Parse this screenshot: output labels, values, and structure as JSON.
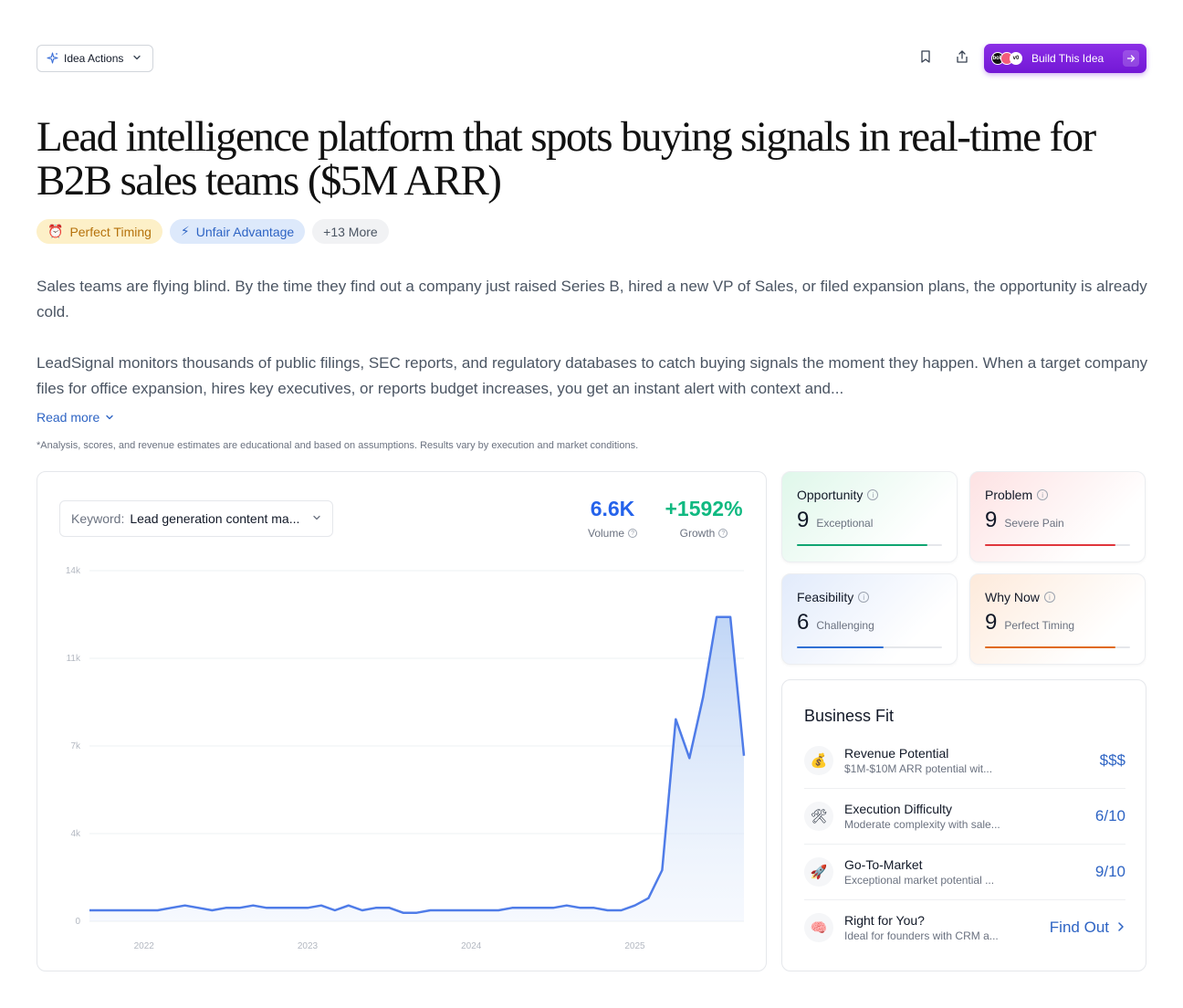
{
  "toolbar": {
    "idea_actions_label": "Idea Actions",
    "build_label": "Build This Idea",
    "avatar_labels": [
      "bolt",
      "",
      "v0"
    ]
  },
  "title": "Lead intelligence platform that spots buying signals in real-time for B2B sales teams ($5M ARR)",
  "tags": [
    {
      "icon": "⏰",
      "label": "Perfect Timing"
    },
    {
      "icon": "⚡",
      "label": "Unfair Advantage"
    },
    {
      "label": "+13 More"
    }
  ],
  "description": {
    "p1": "Sales teams are flying blind. By the time they find out a company just raised Series B, hired a new VP of Sales, or filed expansion plans, the opportunity is already cold.",
    "p2": "LeadSignal monitors thousands of public filings, SEC reports, and regulatory databases to catch buying signals the moment they happen. When a target company files for office expansion, hires key executives, or reports budget increases, you get an instant alert with context and...",
    "read_more": "Read more"
  },
  "disclaimer": "*Analysis, scores, and revenue estimates are educational and based on assumptions. Results vary by execution and market conditions.",
  "keyword": {
    "label": "Keyword:",
    "value": "Lead generation content ma..."
  },
  "metrics": {
    "volume": {
      "value": "6.6K",
      "label": "Volume",
      "color": "#2563eb"
    },
    "growth": {
      "value": "+1592%",
      "label": "Growth",
      "color": "#10b981"
    }
  },
  "chart_data": {
    "type": "area",
    "xlabel": "",
    "ylabel": "",
    "y_ticks": [
      "0",
      "4k",
      "7k",
      "11k",
      "14k"
    ],
    "y_tick_values": [
      0,
      3600,
      7200,
      10800,
      14400
    ],
    "ylim": [
      0,
      14400
    ],
    "x_tick_labels": [
      "2022",
      "2023",
      "2024",
      "2025"
    ],
    "x_tick_index": [
      4,
      16,
      28,
      40
    ],
    "series": [
      {
        "color": "#4f7ce8",
        "values": [
          450,
          450,
          450,
          450,
          450,
          450,
          550,
          650,
          550,
          450,
          550,
          550,
          650,
          550,
          550,
          550,
          550,
          650,
          450,
          650,
          450,
          550,
          550,
          350,
          350,
          450,
          450,
          450,
          450,
          450,
          450,
          550,
          550,
          550,
          550,
          650,
          550,
          550,
          450,
          450,
          650,
          950,
          2100,
          8300,
          6700,
          9200,
          12500,
          12500,
          6800
        ]
      }
    ]
  },
  "scores": [
    {
      "title": "Opportunity",
      "score": "9",
      "label": "Exceptional",
      "fill": 0.9,
      "color": "#10a571"
    },
    {
      "title": "Problem",
      "score": "9",
      "label": "Severe Pain",
      "fill": 0.9,
      "color": "#e0363c"
    },
    {
      "title": "Feasibility",
      "score": "6",
      "label": "Challenging",
      "fill": 0.6,
      "color": "#2f6fd4"
    },
    {
      "title": "Why Now",
      "score": "9",
      "label": "Perfect Timing",
      "fill": 0.9,
      "color": "#e06a17"
    }
  ],
  "business_fit": {
    "title": "Business Fit",
    "rows": [
      {
        "icon": "💰",
        "name": "Revenue Potential",
        "desc": "$1M-$10M ARR potential wit...",
        "value": "$$$"
      },
      {
        "icon": "🛠",
        "name": "Execution Difficulty",
        "desc": "Moderate complexity with sale...",
        "value": "6/10"
      },
      {
        "icon": "🚀",
        "name": "Go-To-Market",
        "desc": "Exceptional market potential ...",
        "value": "9/10"
      },
      {
        "icon": "🧠",
        "name": "Right for You?",
        "desc": "Ideal for founders with CRM a...",
        "value": "Find Out"
      }
    ]
  }
}
